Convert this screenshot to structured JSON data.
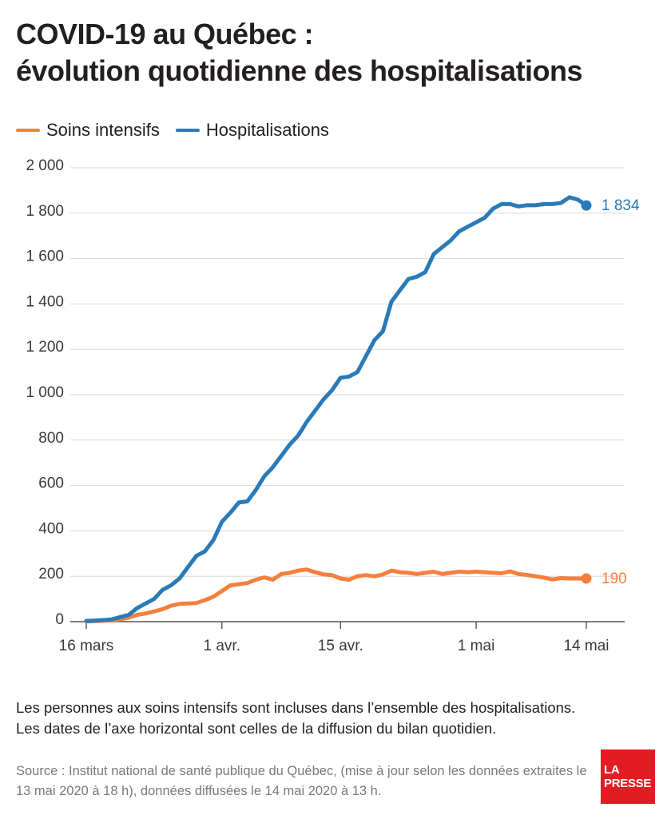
{
  "title": {
    "line1": "COVID-19 au Québec :",
    "line2": "évolution quotidienne des hospitalisations"
  },
  "legend": {
    "items": [
      {
        "label": "Soins intensifs",
        "color": "#f5803e"
      },
      {
        "label": "Hospitalisations",
        "color": "#2a7ab7"
      }
    ]
  },
  "chart_data": {
    "type": "line",
    "title": "COVID-19 au Québec : évolution quotidienne des hospitalisations",
    "x": [
      "2020-03-16",
      "2020-03-17",
      "2020-03-18",
      "2020-03-19",
      "2020-03-20",
      "2020-03-21",
      "2020-03-22",
      "2020-03-23",
      "2020-03-24",
      "2020-03-25",
      "2020-03-26",
      "2020-03-27",
      "2020-03-28",
      "2020-03-29",
      "2020-03-30",
      "2020-03-31",
      "2020-04-01",
      "2020-04-02",
      "2020-04-03",
      "2020-04-04",
      "2020-04-05",
      "2020-04-06",
      "2020-04-07",
      "2020-04-08",
      "2020-04-09",
      "2020-04-10",
      "2020-04-11",
      "2020-04-12",
      "2020-04-13",
      "2020-04-14",
      "2020-04-15",
      "2020-04-16",
      "2020-04-17",
      "2020-04-18",
      "2020-04-19",
      "2020-04-20",
      "2020-04-21",
      "2020-04-22",
      "2020-04-23",
      "2020-04-24",
      "2020-04-25",
      "2020-04-26",
      "2020-04-27",
      "2020-04-28",
      "2020-04-29",
      "2020-04-30",
      "2020-05-01",
      "2020-05-02",
      "2020-05-03",
      "2020-05-04",
      "2020-05-05",
      "2020-05-06",
      "2020-05-07",
      "2020-05-08",
      "2020-05-09",
      "2020-05-10",
      "2020-05-11",
      "2020-05-12",
      "2020-05-13",
      "2020-05-14"
    ],
    "series": [
      {
        "name": "Soins intensifs",
        "color": "#f5803e",
        "values": [
          1,
          2,
          4,
          6,
          10,
          18,
          30,
          36,
          45,
          55,
          70,
          78,
          80,
          82,
          95,
          110,
          135,
          160,
          165,
          170,
          185,
          195,
          185,
          210,
          215,
          225,
          230,
          218,
          208,
          205,
          190,
          185,
          200,
          205,
          200,
          208,
          225,
          218,
          215,
          210,
          215,
          220,
          210,
          215,
          220,
          218,
          220,
          218,
          215,
          213,
          222,
          210,
          206,
          200,
          194,
          186,
          192,
          190,
          190,
          190
        ],
        "end_value": 190,
        "end_label": "190"
      },
      {
        "name": "Hospitalisations",
        "color": "#2a7ab7",
        "values": [
          3,
          5,
          7,
          10,
          20,
          30,
          60,
          80,
          100,
          140,
          160,
          190,
          240,
          290,
          310,
          360,
          440,
          480,
          525,
          530,
          580,
          640,
          680,
          730,
          780,
          820,
          880,
          930,
          980,
          1020,
          1075,
          1080,
          1100,
          1170,
          1240,
          1280,
          1410,
          1460,
          1510,
          1520,
          1540,
          1620,
          1650,
          1680,
          1720,
          1740,
          1760,
          1780,
          1820,
          1840,
          1840,
          1830,
          1835,
          1835,
          1840,
          1840,
          1845,
          1870,
          1860,
          1834
        ],
        "end_value": 1834,
        "end_label": "1 834"
      }
    ],
    "xticks": [
      {
        "date": "2020-03-16",
        "label": "16 mars"
      },
      {
        "date": "2020-04-01",
        "label": "1 avr."
      },
      {
        "date": "2020-04-15",
        "label": "15 avr."
      },
      {
        "date": "2020-05-01",
        "label": "1 mai"
      },
      {
        "date": "2020-05-14",
        "label": "14 mai"
      }
    ],
    "yticks": [
      {
        "value": 0,
        "label": "0"
      },
      {
        "value": 200,
        "label": "200"
      },
      {
        "value": 400,
        "label": "400"
      },
      {
        "value": 600,
        "label": "600"
      },
      {
        "value": 800,
        "label": "800"
      },
      {
        "value": 1000,
        "label": "1 000"
      },
      {
        "value": 1200,
        "label": "1 200"
      },
      {
        "value": 1400,
        "label": "1 400"
      },
      {
        "value": 1600,
        "label": "1 600"
      },
      {
        "value": 1800,
        "label": "1 800"
      },
      {
        "value": 2000,
        "label": "2 000"
      }
    ],
    "ylim": [
      0,
      2000
    ],
    "xlim": [
      "2020-03-16",
      "2020-05-14"
    ],
    "grid": "horizontal",
    "legend_position": "top-left"
  },
  "notes": {
    "line1": "Les personnes aux soins intensifs sont incluses dans l’ensemble des hospitalisations.",
    "line2": "Les dates de l’axe horizontal sont celles de la diffusion du bilan quotidien."
  },
  "source": "Source : Institut national de santé publique du Québec, (mise à jour selon les données extraites le 13 mai 2020 à 18 h), données diffusées le 14 mai 2020 à 13 h.",
  "logo": {
    "line1": "LA",
    "line2": "PRESSE",
    "color": "#e31b23"
  }
}
